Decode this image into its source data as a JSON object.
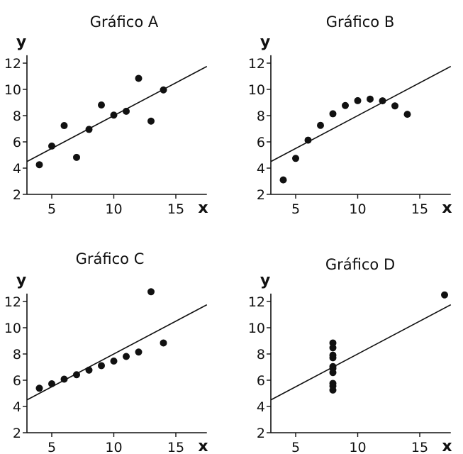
{
  "chart_data": [
    {
      "type": "scatter",
      "title": "Gráfico A",
      "xlabel": "x",
      "ylabel": "y",
      "xlim": [
        3,
        17.5
      ],
      "ylim": [
        2,
        13
      ],
      "xticks": [
        5,
        10,
        15
      ],
      "yticks": [
        2,
        4,
        6,
        8,
        10,
        12
      ],
      "grid": false,
      "fit_line": {
        "slope": 0.5,
        "intercept": 3
      },
      "points": [
        [
          4,
          4.26
        ],
        [
          5,
          5.68
        ],
        [
          6,
          7.24
        ],
        [
          7,
          4.82
        ],
        [
          8,
          6.95
        ],
        [
          9,
          8.81
        ],
        [
          10,
          8.04
        ],
        [
          11,
          8.33
        ],
        [
          12,
          10.84
        ],
        [
          13,
          7.58
        ],
        [
          14,
          9.96
        ]
      ]
    },
    {
      "type": "scatter",
      "title": "Gráfico B",
      "xlabel": "x",
      "ylabel": "y",
      "xlim": [
        3,
        17.5
      ],
      "ylim": [
        2,
        13
      ],
      "xticks": [
        5,
        10,
        15
      ],
      "yticks": [
        2,
        4,
        6,
        8,
        10,
        12
      ],
      "grid": false,
      "fit_line": {
        "slope": 0.5,
        "intercept": 3
      },
      "points": [
        [
          4,
          3.1
        ],
        [
          5,
          4.74
        ],
        [
          6,
          6.13
        ],
        [
          7,
          7.26
        ],
        [
          8,
          8.14
        ],
        [
          9,
          8.77
        ],
        [
          10,
          9.14
        ],
        [
          11,
          9.26
        ],
        [
          12,
          9.13
        ],
        [
          13,
          8.74
        ],
        [
          14,
          8.1
        ]
      ]
    },
    {
      "type": "scatter",
      "title": "Gráfico C",
      "xlabel": "x",
      "ylabel": "y",
      "xlim": [
        3,
        17.5
      ],
      "ylim": [
        2,
        13
      ],
      "xticks": [
        5,
        10,
        15
      ],
      "yticks": [
        2,
        4,
        6,
        8,
        10,
        12
      ],
      "grid": false,
      "fit_line": {
        "slope": 0.5,
        "intercept": 3
      },
      "points": [
        [
          4,
          5.39
        ],
        [
          5,
          5.73
        ],
        [
          6,
          6.08
        ],
        [
          7,
          6.42
        ],
        [
          8,
          6.77
        ],
        [
          9,
          7.11
        ],
        [
          10,
          7.46
        ],
        [
          11,
          7.81
        ],
        [
          12,
          8.15
        ],
        [
          13,
          12.74
        ],
        [
          14,
          8.84
        ]
      ]
    },
    {
      "type": "scatter",
      "title": "Gráfico D",
      "xlabel": "x",
      "ylabel": "y",
      "xlim": [
        3,
        17.5
      ],
      "ylim": [
        2,
        13
      ],
      "xticks": [
        5,
        10,
        15
      ],
      "yticks": [
        2,
        4,
        6,
        8,
        10,
        12
      ],
      "grid": false,
      "fit_line": {
        "slope": 0.5,
        "intercept": 3
      },
      "points": [
        [
          8,
          6.58
        ],
        [
          8,
          5.76
        ],
        [
          8,
          7.71
        ],
        [
          8,
          8.84
        ],
        [
          8,
          8.47
        ],
        [
          8,
          7.04
        ],
        [
          8,
          5.25
        ],
        [
          17,
          12.5
        ],
        [
          8,
          5.56
        ],
        [
          8,
          7.91
        ],
        [
          8,
          6.89
        ]
      ]
    }
  ]
}
